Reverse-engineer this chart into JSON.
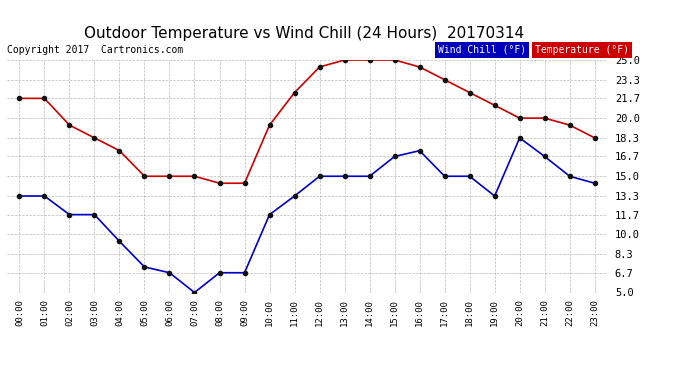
{
  "title": "Outdoor Temperature vs Wind Chill (24 Hours)  20170314",
  "copyright": "Copyright 2017  Cartronics.com",
  "legend_wind_chill": "Wind Chill (°F)",
  "legend_temperature": "Temperature (°F)",
  "x_labels": [
    "00:00",
    "01:00",
    "02:00",
    "03:00",
    "04:00",
    "05:00",
    "06:00",
    "07:00",
    "08:00",
    "09:00",
    "10:00",
    "11:00",
    "12:00",
    "13:00",
    "14:00",
    "15:00",
    "16:00",
    "17:00",
    "18:00",
    "19:00",
    "20:00",
    "21:00",
    "22:00",
    "23:00"
  ],
  "temperature_data": [
    21.7,
    21.7,
    19.4,
    18.3,
    17.2,
    15.0,
    15.0,
    15.0,
    14.4,
    14.4,
    19.4,
    22.2,
    24.4,
    25.0,
    25.0,
    25.0,
    24.4,
    23.3,
    22.2,
    21.1,
    20.0,
    20.0,
    19.4,
    18.3
  ],
  "wind_chill_data": [
    13.3,
    13.3,
    11.7,
    11.7,
    9.4,
    7.2,
    6.7,
    5.0,
    6.7,
    6.7,
    11.7,
    13.3,
    15.0,
    15.0,
    15.0,
    16.7,
    17.2,
    15.0,
    15.0,
    13.3,
    18.3,
    16.7,
    15.0,
    14.4
  ],
  "ylim_min": 5.0,
  "ylim_max": 25.0,
  "yticks": [
    5.0,
    6.7,
    8.3,
    10.0,
    11.7,
    13.3,
    15.0,
    16.7,
    18.3,
    20.0,
    21.7,
    23.3,
    25.0
  ],
  "temp_color": "#cc0000",
  "wind_color": "#0000cc",
  "bg_color": "#ffffff",
  "grid_color": "#aaaaaa",
  "title_color": "#000000",
  "title_fontsize": 11,
  "copyright_fontsize": 7,
  "legend_bg_wind": "#0000bb",
  "legend_bg_temp": "#cc0000",
  "legend_text_color": "#ffffff"
}
